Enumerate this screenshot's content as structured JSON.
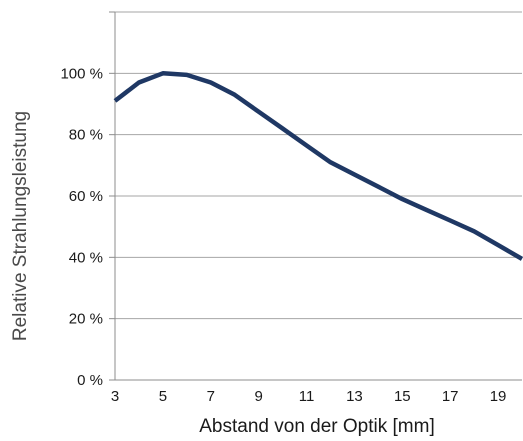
{
  "chart_data": {
    "type": "line",
    "xlabel": "Abstand von der Optik [mm]",
    "ylabel": "Relative Strahlungsleistung",
    "xlim": [
      3,
      20
    ],
    "ylim": [
      0,
      120
    ],
    "x_ticks": [
      3,
      5,
      7,
      9,
      11,
      13,
      15,
      17,
      19
    ],
    "y_ticks": [
      {
        "value": 0,
        "label": "0 %"
      },
      {
        "value": 20,
        "label": "20 %"
      },
      {
        "value": 40,
        "label": "40 %"
      },
      {
        "value": 60,
        "label": "60 %"
      },
      {
        "value": 80,
        "label": "80 %"
      },
      {
        "value": 100,
        "label": "100 %"
      },
      {
        "value": 120,
        "label": ""
      }
    ],
    "grid": "horizontal",
    "line_color": "#1f3864",
    "grid_color": "#a6a6a6",
    "series": [
      {
        "x": [
          3,
          4,
          5,
          6,
          7,
          8,
          9,
          10,
          11,
          12,
          13,
          14,
          15,
          16,
          17,
          18,
          19,
          20
        ],
        "values": [
          91,
          97,
          100,
          99.5,
          97,
          93,
          87.5,
          82,
          76.5,
          71,
          67,
          63,
          59,
          55.5,
          52,
          48.5,
          44,
          39.5
        ]
      }
    ]
  }
}
